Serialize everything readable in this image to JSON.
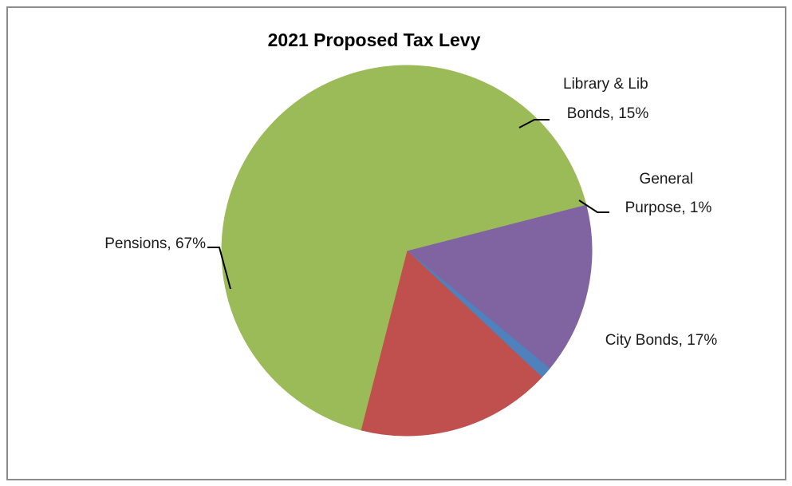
{
  "chart_data": {
    "type": "pie",
    "title": "2021 Proposed Tax Levy",
    "slices": [
      {
        "label": "Pensions, 67%",
        "value": 67,
        "color": "#9bbb59"
      },
      {
        "label": "Library & Lib Bonds, 15%",
        "value": 15,
        "color": "#8064a2"
      },
      {
        "label": "General Purpose, 1%",
        "value": 1,
        "color": "#4f81bd"
      },
      {
        "label": "City Bonds, 17%",
        "value": 17,
        "color": "#c0504d"
      }
    ],
    "label_lines": {
      "library": [
        "Library & Lib",
        "Bonds, 15%"
      ],
      "general": [
        "General",
        "Purpose, 1%"
      ]
    }
  }
}
